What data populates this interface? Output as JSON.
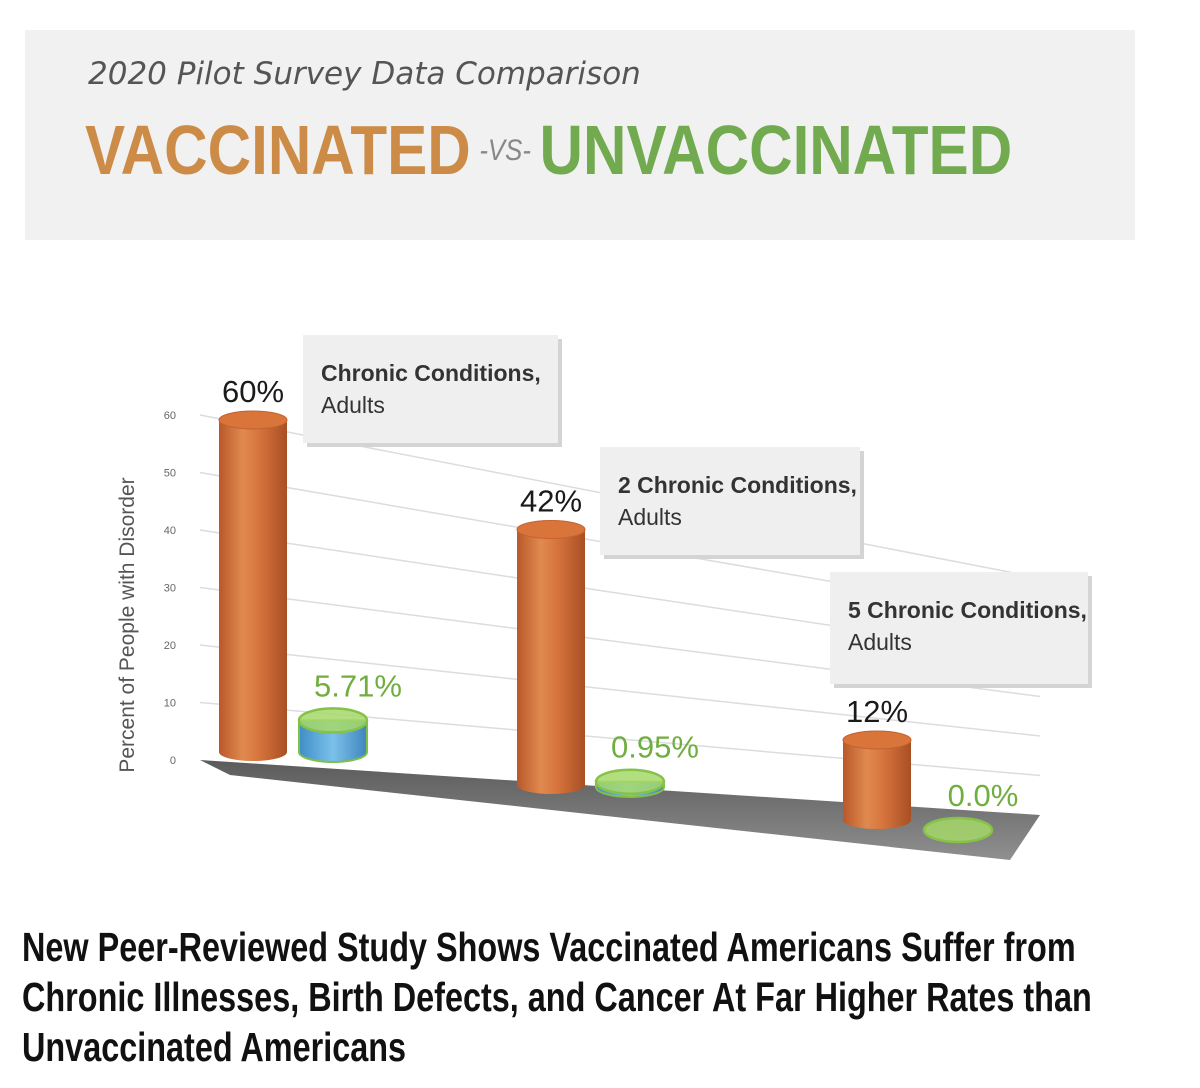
{
  "header": {
    "subtitle": "2020 Pilot Survey Data Comparison",
    "vaccinated": "VACCINATED",
    "vs": "-VS-",
    "unvaccinated": "UNVACCINATED"
  },
  "colors": {
    "vaccinated": "#cc8c47",
    "unvaccinated": "#72aa4f",
    "bar_orange": "#d9743a",
    "label_green": "#6fae3f"
  },
  "chart_data": {
    "type": "bar",
    "title": "2020 Pilot Survey Data Comparison",
    "ylabel": "Percent of People with Disorder",
    "ylim": [
      0,
      60
    ],
    "yticks": [
      "0",
      "10",
      "20",
      "30",
      "40",
      "50",
      "60"
    ],
    "categories": [
      "Chronic Conditions, Adults",
      "2 Chronic Conditions, Adults",
      "5 Chronic Conditions, Adults"
    ],
    "category_lines": [
      [
        "Chronic Conditions,",
        "Adults"
      ],
      [
        "2 Chronic Conditions,",
        "Adults"
      ],
      [
        "5 Chronic Conditions,",
        "Adults"
      ]
    ],
    "series": [
      {
        "name": "Vaccinated",
        "values": [
          60,
          42,
          12
        ],
        "labels": [
          "60%",
          "42%",
          "12%"
        ]
      },
      {
        "name": "Unvaccinated",
        "values": [
          5.71,
          0.95,
          0.0
        ],
        "labels": [
          "5.71%",
          "0.95%",
          "0.0%"
        ]
      }
    ]
  },
  "caption": {
    "line1": "New Peer-Reviewed Study Shows Vaccinated Americans Suffer from",
    "line2": "Chronic Illnesses, Birth Defects, and Cancer At Far Higher Rates than",
    "line3": "Unvaccinated Americans"
  }
}
